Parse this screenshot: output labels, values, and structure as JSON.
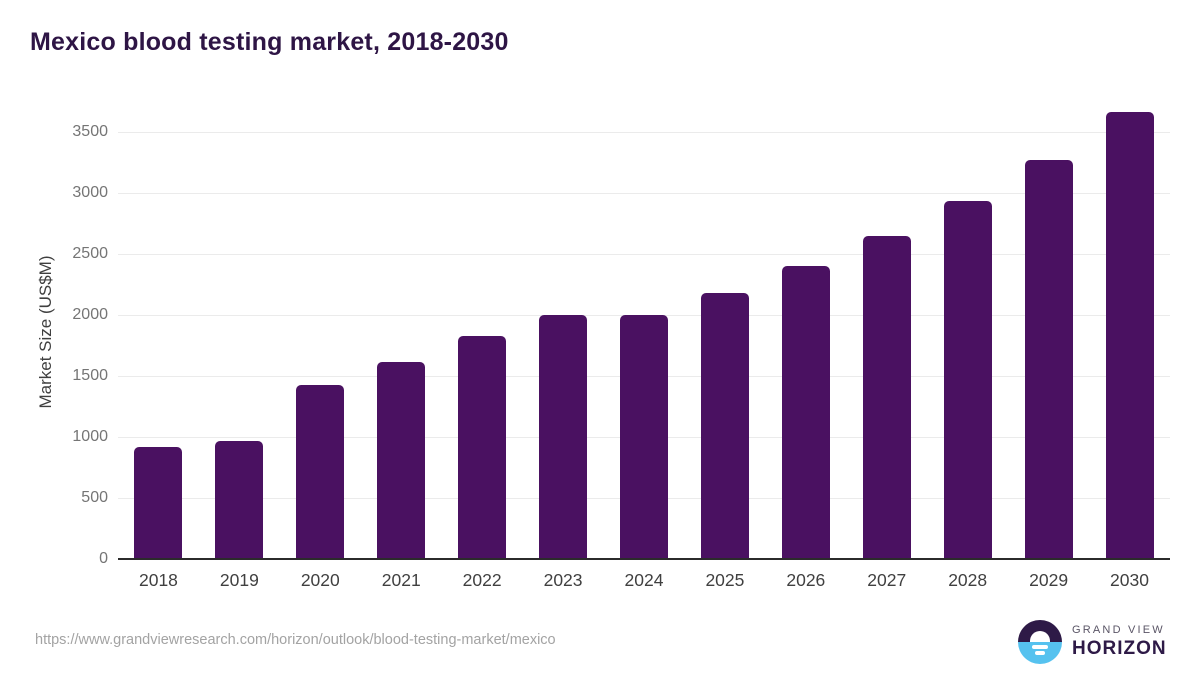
{
  "header": {
    "title": "Mexico blood testing market, 2018-2030"
  },
  "chart_data": {
    "type": "bar",
    "title": "Mexico blood testing market, 2018-2030",
    "categories": [
      "2018",
      "2019",
      "2020",
      "2021",
      "2022",
      "2023",
      "2024",
      "2025",
      "2026",
      "2027",
      "2028",
      "2029",
      "2030"
    ],
    "values": [
      920,
      970,
      1430,
      1615,
      1830,
      2000,
      2000,
      2180,
      2400,
      2645,
      2935,
      3270,
      3665
    ],
    "xlabel": "",
    "ylabel": "Market Size (US$M)",
    "ylim": [
      0,
      3720
    ],
    "yticks": [
      0,
      500,
      1000,
      1500,
      2000,
      2500,
      3000,
      3500
    ],
    "grid": true,
    "legend": false,
    "bar_color": "#4a1161"
  },
  "footer": {
    "source_url": "https://www.grandviewresearch.com/horizon/outlook/blood-testing-market/mexico",
    "logo": {
      "line1": "GRAND VIEW",
      "line2": "HORIZON"
    }
  },
  "colors": {
    "title": "#2e1545",
    "bar": "#4a1161",
    "axis_line": "#2b2b2b",
    "gridline": "#ebebeb",
    "y_tick_label": "#757575",
    "x_tick_label": "#404040",
    "url_text": "#a3a3a3",
    "logo_purple": "#2e1a47",
    "logo_blue": "#56c2ef"
  }
}
